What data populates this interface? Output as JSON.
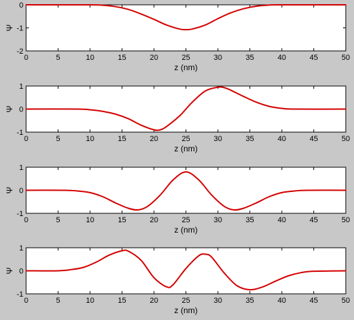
{
  "figure": {
    "background": "#c8c8c8"
  },
  "chart_data": [
    {
      "type": "line",
      "title": "",
      "xlabel": "z (nm)",
      "ylabel": "Ψ",
      "xlim": [
        0,
        50
      ],
      "ylim": [
        -2,
        0
      ],
      "xticks": [
        0,
        5,
        10,
        15,
        20,
        25,
        30,
        35,
        40,
        45,
        50
      ],
      "yticks": [
        -2,
        -1,
        0
      ],
      "grid": false,
      "series": [
        {
          "color": "#d40000",
          "x": [
            0,
            10,
            12,
            14,
            16,
            18,
            20,
            22,
            24,
            25,
            26,
            28,
            30,
            32,
            34,
            36,
            38,
            40,
            50
          ],
          "y": [
            0,
            0,
            -0.02,
            -0.08,
            -0.2,
            -0.4,
            -0.63,
            -0.88,
            -1.05,
            -1.08,
            -1.05,
            -0.88,
            -0.6,
            -0.35,
            -0.17,
            -0.06,
            -0.01,
            0,
            0
          ]
        }
      ]
    },
    {
      "type": "line",
      "title": "",
      "xlabel": "z (nm)",
      "ylabel": "Ψ",
      "xlim": [
        0,
        50
      ],
      "ylim": [
        -1,
        1
      ],
      "xticks": [
        0,
        5,
        10,
        15,
        20,
        25,
        30,
        35,
        40,
        45,
        50
      ],
      "yticks": [
        -1,
        0,
        1
      ],
      "grid": false,
      "series": [
        {
          "color": "#d40000",
          "x": [
            0,
            8,
            10,
            12,
            14,
            16,
            18,
            20,
            21,
            22,
            24,
            25,
            26,
            28,
            30,
            31,
            32,
            34,
            36,
            38,
            40,
            42,
            50
          ],
          "y": [
            0,
            0,
            -0.03,
            -0.1,
            -0.22,
            -0.42,
            -0.7,
            -0.9,
            -0.9,
            -0.75,
            -0.3,
            0,
            0.3,
            0.78,
            0.95,
            0.93,
            0.82,
            0.55,
            0.3,
            0.12,
            0.03,
            0,
            0
          ]
        }
      ]
    },
    {
      "type": "line",
      "title": "",
      "xlabel": "z (nm)",
      "ylabel": "Ψ",
      "xlim": [
        0,
        50
      ],
      "ylim": [
        -1,
        1
      ],
      "xticks": [
        0,
        5,
        10,
        15,
        20,
        25,
        30,
        35,
        40,
        45,
        50
      ],
      "yticks": [
        -1,
        0,
        1
      ],
      "grid": false,
      "series": [
        {
          "color": "#d40000",
          "x": [
            0,
            6,
            8,
            10,
            12,
            14,
            16,
            17.5,
            19,
            21,
            23,
            25,
            27,
            29,
            31,
            32.5,
            34,
            36,
            38,
            40,
            42,
            44,
            50
          ],
          "y": [
            0,
            0,
            -0.03,
            -0.1,
            -0.28,
            -0.55,
            -0.78,
            -0.85,
            -0.7,
            -0.2,
            0.45,
            0.8,
            0.45,
            -0.2,
            -0.7,
            -0.85,
            -0.78,
            -0.55,
            -0.28,
            -0.1,
            -0.03,
            0,
            0
          ]
        }
      ]
    },
    {
      "type": "line",
      "title": "",
      "xlabel": "z (nm)",
      "ylabel": "Ψ",
      "xlim": [
        0,
        50
      ],
      "ylim": [
        -1,
        1
      ],
      "xticks": [
        0,
        5,
        10,
        15,
        20,
        25,
        30,
        35,
        40,
        45,
        50
      ],
      "yticks": [
        -1,
        0,
        1
      ],
      "grid": false,
      "series": [
        {
          "color": "#d40000",
          "x": [
            0,
            5,
            7,
            9,
            11,
            13,
            15,
            16,
            18,
            20,
            22,
            23,
            25,
            27,
            28,
            29,
            31,
            33,
            35,
            37,
            39,
            41,
            43,
            45,
            50
          ],
          "y": [
            0,
            0,
            0.05,
            0.15,
            0.38,
            0.68,
            0.87,
            0.85,
            0.45,
            -0.3,
            -0.7,
            -0.6,
            0.1,
            0.65,
            0.72,
            0.6,
            -0.1,
            -0.65,
            -0.82,
            -0.7,
            -0.45,
            -0.22,
            -0.08,
            -0.02,
            0
          ]
        }
      ]
    }
  ]
}
